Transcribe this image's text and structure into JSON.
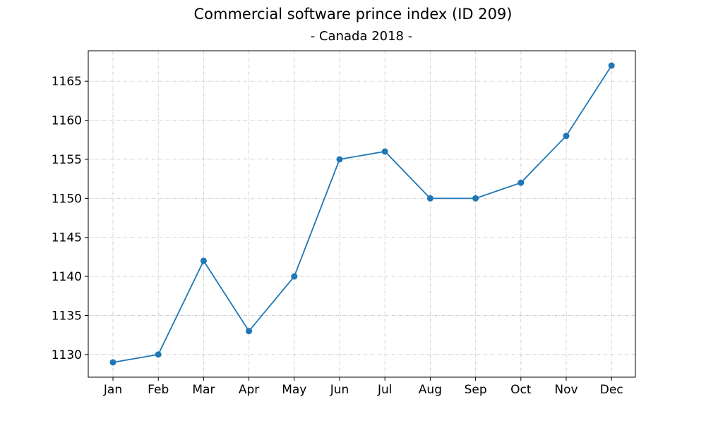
{
  "chart_data": {
    "type": "line",
    "title": "Commercial software prince index (ID 209)",
    "subtitle": "- Canada 2018 -",
    "xlabel": "",
    "ylabel": "",
    "categories": [
      "Jan",
      "Feb",
      "Mar",
      "Apr",
      "May",
      "Jun",
      "Jul",
      "Aug",
      "Sep",
      "Oct",
      "Nov",
      "Dec"
    ],
    "series": [
      {
        "values": [
          1129,
          1130,
          1142,
          1133,
          1140,
          1155,
          1156,
          1150,
          1150,
          1152,
          1158,
          1167
        ]
      }
    ],
    "ylim": [
      1127.1,
      1168.9
    ],
    "yticks": [
      1130,
      1135,
      1140,
      1145,
      1150,
      1155,
      1160,
      1165
    ],
    "grid": true,
    "colors": {
      "line": "#1f77b4",
      "grid": "#cfcfcf",
      "axis": "#000000"
    }
  }
}
